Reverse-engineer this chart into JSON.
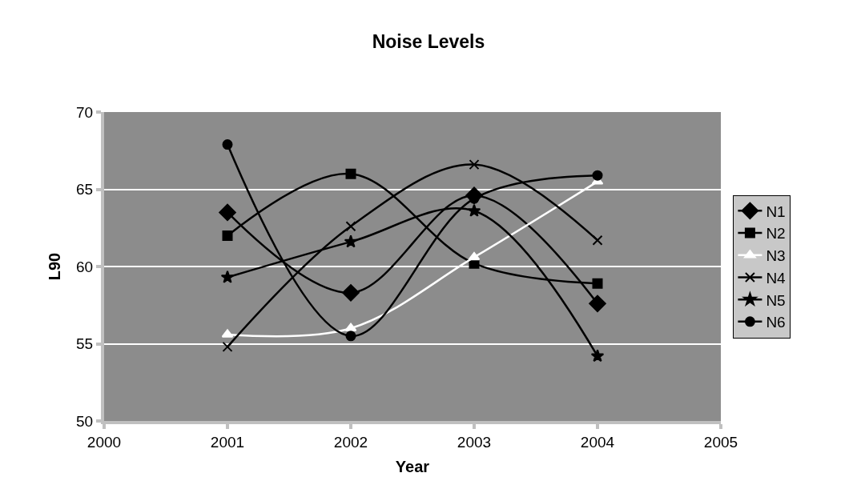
{
  "chart_data": {
    "type": "line",
    "title": "Noise Levels",
    "xlabel": "Year",
    "ylabel": "L90",
    "x": [
      2001,
      2002,
      2003,
      2004
    ],
    "series": [
      {
        "name": "N1",
        "color": "#000000",
        "marker": "diamond",
        "values": [
          63.5,
          58.3,
          64.6,
          57.6
        ]
      },
      {
        "name": "N2",
        "color": "#000000",
        "marker": "square",
        "values": [
          62.0,
          66.0,
          60.2,
          58.9
        ]
      },
      {
        "name": "N3",
        "color": "#ffffff",
        "marker": "triangle",
        "values": [
          55.6,
          56.0,
          60.6,
          65.5
        ]
      },
      {
        "name": "N4",
        "color": "#000000",
        "marker": "cross",
        "values": [
          54.8,
          62.6,
          66.6,
          61.7
        ]
      },
      {
        "name": "N5",
        "color": "#000000",
        "marker": "star",
        "values": [
          59.3,
          61.6,
          63.6,
          54.2
        ]
      },
      {
        "name": "N6",
        "color": "#000000",
        "marker": "circle",
        "values": [
          67.9,
          55.5,
          64.4,
          65.9
        ]
      }
    ],
    "xlim": [
      2000,
      2005
    ],
    "xticks": [
      2000,
      2001,
      2002,
      2003,
      2004,
      2005
    ],
    "ylim": [
      50,
      70
    ],
    "yticks": [
      50,
      55,
      60,
      65,
      70
    ],
    "grid": "y",
    "legend": "right",
    "line_style": "solid"
  }
}
